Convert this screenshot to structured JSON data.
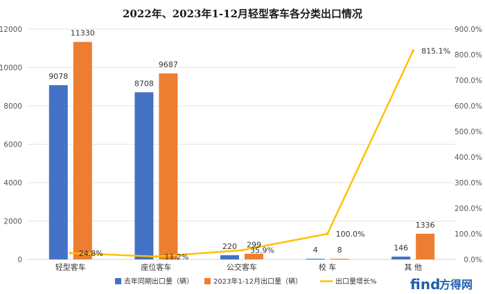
{
  "chart_data": {
    "type": "bar",
    "title": "2022年、2023年1-12月轻型客车各分类出口情况",
    "categories": [
      "轻型客车",
      "座位客车",
      "公交客车",
      "校  车",
      "其  他"
    ],
    "series": [
      {
        "name": "去年同期出口量（辆）",
        "type": "bar",
        "axis": "left",
        "color": "#4472c4",
        "values": [
          9078,
          8708,
          220,
          4,
          146
        ],
        "labels": [
          "9078",
          "8708",
          "220",
          "4",
          "146"
        ]
      },
      {
        "name": "2023年1-12月出口量（辆）",
        "type": "bar",
        "axis": "left",
        "color": "#ed7d31",
        "values": [
          11330,
          9687,
          299,
          8,
          1336
        ],
        "labels": [
          "11330",
          "9687",
          "299",
          "8",
          "1336"
        ]
      },
      {
        "name": "出口量增长%",
        "type": "line",
        "axis": "right",
        "color": "#ffc000",
        "values": [
          24.8,
          11.2,
          35.9,
          100.0,
          815.1
        ],
        "labels": [
          "24.8%",
          "11.2%",
          "35.9%",
          "100.0%",
          "815.1%"
        ]
      }
    ],
    "y_left": {
      "min": 0,
      "max": 12000,
      "ticks": [
        "0",
        "2000",
        "4000",
        "6000",
        "8000",
        "10000",
        "12000"
      ]
    },
    "y_right": {
      "min": 0,
      "max": 900,
      "ticks": [
        "0.0%",
        "100.0%",
        "200.0%",
        "300.0%",
        "400.0%",
        "500.0%",
        "600.0%",
        "700.0%",
        "800.0%",
        "900.0%"
      ]
    },
    "grid": true,
    "legend_position": "bottom"
  },
  "watermark": {
    "text": "find",
    "suffix": "方得网",
    "color": "#1f5fae"
  }
}
